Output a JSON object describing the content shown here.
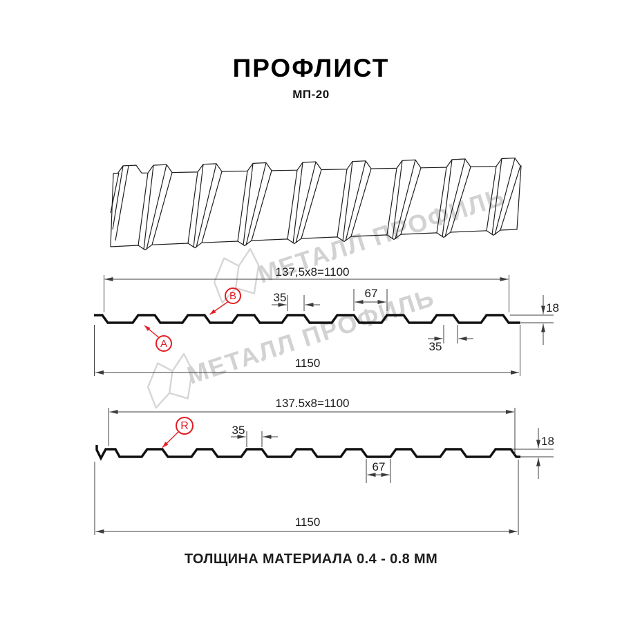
{
  "header": {
    "title": "ПРОФЛИСТ",
    "subtitle": "МП-20"
  },
  "footer": {
    "text": "ТОЛЩИНА МАТЕРИАЛА 0.4 - 0.8 ММ"
  },
  "watermark": {
    "brand": "МЕТАЛЛ ПРОФИЛЬ"
  },
  "colors": {
    "accent_red": "#e31e24",
    "line_black": "#101010",
    "watermark_gray": "#d2d2d2"
  },
  "section_a": {
    "description": "front side cross-section",
    "dims": {
      "top_width": "137,5x8=1100",
      "crest_top": "35",
      "valley_top": "67",
      "height": "18",
      "valley_bottom": "35",
      "overall": "1150"
    },
    "point_labels": {
      "a": "A",
      "b": "B"
    }
  },
  "section_r": {
    "description": "reverse side cross-section",
    "dims": {
      "top_width": "137.5x8=1100",
      "crest_top": "35",
      "valley_bottom": "67",
      "height": "18",
      "overall": "1150"
    },
    "point_labels": {
      "r": "R"
    }
  }
}
